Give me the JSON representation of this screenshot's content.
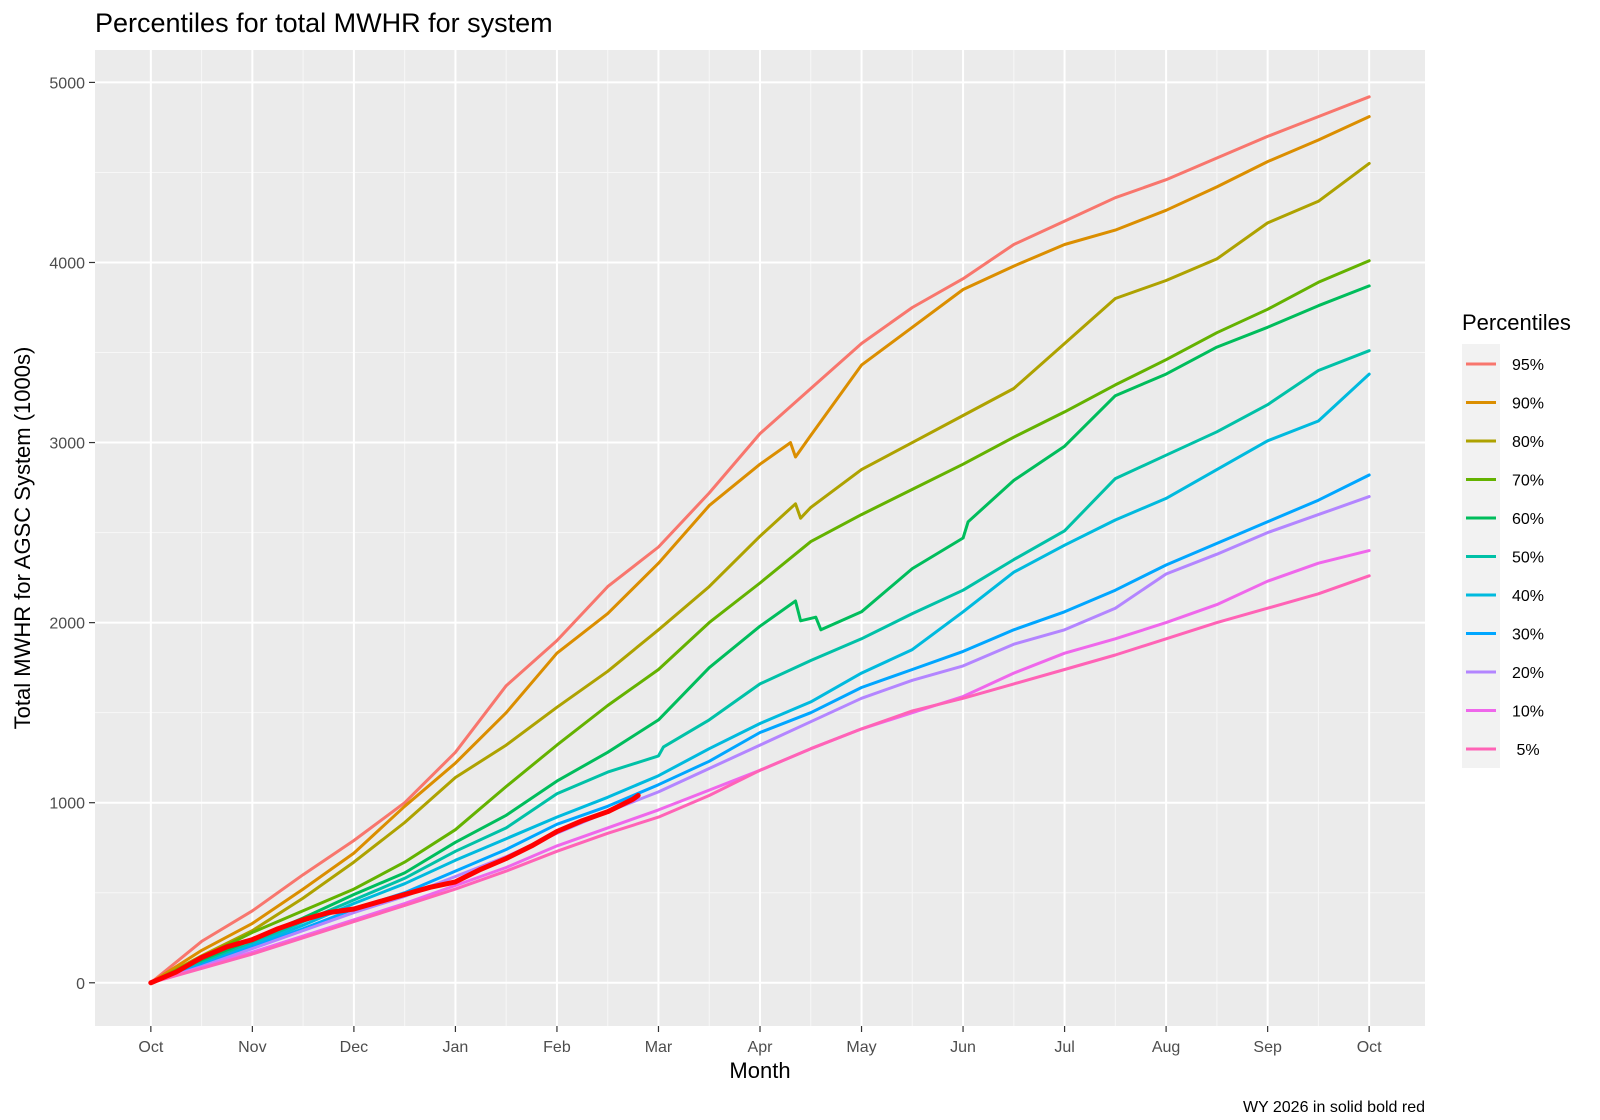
{
  "chart_data": {
    "type": "line",
    "title": "Percentiles for total MWHR for system",
    "xlabel": "Month",
    "ylabel": "Total MWHR for AGSC System (1000s)",
    "caption": "WY 2026 in solid  bold red",
    "legend_title": "Percentiles",
    "legend_position": "right",
    "grid": true,
    "x_ticks": [
      "Oct",
      "Nov",
      "Dec",
      "Jan",
      "Feb",
      "Mar",
      "Apr",
      "May",
      "Jun",
      "Jul",
      "Aug",
      "Sep",
      "Oct"
    ],
    "x_tick_months": [
      0,
      1,
      2,
      3,
      4,
      5,
      6,
      7,
      8,
      9,
      10,
      11,
      12
    ],
    "y_ticks": [
      0,
      1000,
      2000,
      3000,
      4000,
      5000
    ],
    "y_tick_labels": [
      "0",
      "1000",
      "2000",
      "3000",
      "4000",
      "5000"
    ],
    "xlim": [
      -0.55,
      12.55
    ],
    "ylim": [
      -240,
      5180
    ],
    "series": [
      {
        "name": "95%",
        "color": "#F8766D",
        "x": [
          0,
          0.5,
          1,
          1.5,
          2,
          2.5,
          3,
          3.5,
          4,
          4.5,
          5,
          5.5,
          6,
          6.5,
          7,
          7.5,
          8,
          8.5,
          9,
          9.5,
          10,
          10.5,
          11,
          11.5,
          12
        ],
        "y": [
          0,
          230,
          400,
          600,
          790,
          1000,
          1280,
          1650,
          1900,
          2200,
          2420,
          2720,
          3050,
          3300,
          3550,
          3750,
          3910,
          4100,
          4230,
          4360,
          4460,
          4580,
          4700,
          4810,
          4920
        ]
      },
      {
        "name": "90%",
        "color": "#DB8E00",
        "x": [
          0,
          0.5,
          1,
          1.5,
          2,
          2.5,
          3,
          3.5,
          4,
          4.5,
          5,
          5.5,
          6,
          6.3,
          6.35,
          6.5,
          7,
          7.5,
          8,
          8.5,
          9,
          9.5,
          10,
          10.5,
          11,
          11.5,
          12
        ],
        "y": [
          0,
          180,
          330,
          520,
          720,
          980,
          1220,
          1500,
          1830,
          2050,
          2330,
          2650,
          2880,
          3000,
          2920,
          3040,
          3430,
          3640,
          3850,
          3980,
          4100,
          4180,
          4290,
          4420,
          4560,
          4680,
          4810
        ]
      },
      {
        "name": "80%",
        "color": "#AEA200",
        "x": [
          0,
          0.5,
          1,
          1.5,
          2,
          2.5,
          3,
          3.5,
          4,
          4.5,
          5,
          5.5,
          6,
          6.35,
          6.4,
          6.5,
          7,
          7.5,
          8,
          8.5,
          9,
          9.5,
          10,
          10.5,
          11,
          11.5,
          12
        ],
        "y": [
          0,
          150,
          290,
          470,
          670,
          890,
          1140,
          1320,
          1530,
          1730,
          1960,
          2200,
          2480,
          2660,
          2580,
          2640,
          2850,
          3000,
          3150,
          3300,
          3550,
          3800,
          3900,
          4020,
          4220,
          4340,
          4550
        ]
      },
      {
        "name": "70%",
        "color": "#64B200",
        "x": [
          0,
          0.5,
          1,
          1.5,
          2,
          2.5,
          3,
          3.5,
          4,
          4.5,
          5,
          5.5,
          6,
          6.5,
          7,
          7.5,
          8,
          8.5,
          9,
          9.5,
          10,
          10.5,
          11,
          11.5,
          12
        ],
        "y": [
          0,
          140,
          280,
          400,
          520,
          670,
          850,
          1090,
          1320,
          1540,
          1740,
          2000,
          2220,
          2450,
          2600,
          2740,
          2880,
          3030,
          3170,
          3320,
          3460,
          3610,
          3740,
          3890,
          4010
        ]
      },
      {
        "name": "60%",
        "color": "#00BD5C",
        "x": [
          0,
          0.5,
          1,
          1.5,
          2,
          2.5,
          3,
          3.5,
          4,
          4.5,
          5,
          5.5,
          6,
          6.35,
          6.4,
          6.55,
          6.6,
          7,
          7.5,
          8,
          8.05,
          8.5,
          9,
          9.5,
          10,
          10.5,
          11,
          11.5,
          12
        ],
        "y": [
          0,
          120,
          240,
          360,
          490,
          610,
          780,
          930,
          1120,
          1280,
          1460,
          1750,
          1980,
          2120,
          2010,
          2030,
          1960,
          2060,
          2300,
          2470,
          2560,
          2790,
          2980,
          3260,
          3380,
          3530,
          3640,
          3760,
          3870
        ]
      },
      {
        "name": "50%",
        "color": "#00C1A7",
        "x": [
          0,
          0.5,
          1,
          1.5,
          2,
          2.5,
          3,
          3.5,
          4,
          4.5,
          5,
          5.05,
          5.5,
          6,
          6.5,
          7,
          7.5,
          8,
          8.5,
          9,
          9.5,
          10,
          10.5,
          11,
          11.5,
          12
        ],
        "y": [
          0,
          110,
          220,
          340,
          460,
          580,
          730,
          860,
          1050,
          1170,
          1260,
          1310,
          1460,
          1660,
          1790,
          1910,
          2050,
          2180,
          2350,
          2510,
          2800,
          2930,
          3060,
          3210,
          3400,
          3510
        ]
      },
      {
        "name": "40%",
        "color": "#00BADE",
        "x": [
          0,
          0.5,
          1,
          1.5,
          2,
          2.5,
          3,
          3.5,
          4,
          4.5,
          5,
          5.5,
          6,
          6.5,
          7,
          7.5,
          8,
          8.5,
          9,
          9.5,
          10,
          10.5,
          11,
          11.5,
          12
        ],
        "y": [
          0,
          100,
          210,
          320,
          440,
          550,
          680,
          800,
          920,
          1030,
          1150,
          1300,
          1440,
          1560,
          1720,
          1850,
          2060,
          2280,
          2430,
          2570,
          2690,
          2850,
          3010,
          3120,
          3380
        ]
      },
      {
        "name": "30%",
        "color": "#00A6FF",
        "x": [
          0,
          0.5,
          1,
          1.5,
          2,
          2.5,
          3,
          3.5,
          4,
          4.5,
          5,
          5.5,
          6,
          6.5,
          7,
          7.5,
          8,
          8.5,
          9,
          9.5,
          10,
          10.5,
          11,
          11.5,
          12
        ],
        "y": [
          0,
          100,
          200,
          300,
          410,
          500,
          620,
          740,
          880,
          980,
          1100,
          1230,
          1390,
          1500,
          1640,
          1740,
          1840,
          1960,
          2060,
          2180,
          2320,
          2440,
          2560,
          2680,
          2820
        ]
      },
      {
        "name": "20%",
        "color": "#B385FF",
        "x": [
          0,
          0.5,
          1,
          1.5,
          2,
          2.5,
          3,
          3.5,
          4,
          4.5,
          5,
          5.5,
          6,
          6.5,
          7,
          7.5,
          8,
          8.5,
          9,
          9.5,
          10,
          10.5,
          11,
          11.5,
          12
        ],
        "y": [
          0,
          90,
          190,
          290,
          390,
          480,
          590,
          700,
          830,
          950,
          1060,
          1190,
          1320,
          1450,
          1580,
          1680,
          1760,
          1880,
          1960,
          2080,
          2270,
          2380,
          2500,
          2600,
          2700
        ]
      },
      {
        "name": "10%",
        "color": "#EF67EB",
        "x": [
          0,
          0.5,
          1,
          1.5,
          2,
          2.5,
          3,
          3.5,
          4,
          4.5,
          5,
          5.5,
          6,
          6.5,
          7,
          7.5,
          8,
          8.5,
          9,
          9.5,
          10,
          10.5,
          11,
          11.5,
          12
        ],
        "y": [
          0,
          85,
          170,
          260,
          350,
          440,
          540,
          640,
          760,
          860,
          960,
          1070,
          1180,
          1300,
          1410,
          1500,
          1590,
          1720,
          1830,
          1910,
          2000,
          2100,
          2230,
          2330,
          2400
        ]
      },
      {
        "name": " 5%",
        "color": "#FF63B6",
        "x": [
          0,
          0.5,
          1,
          1.5,
          2,
          2.5,
          3,
          3.5,
          4,
          4.5,
          5,
          5.5,
          6,
          6.5,
          7,
          7.5,
          8,
          8.5,
          9,
          9.5,
          10,
          10.5,
          11,
          11.5,
          12
        ],
        "y": [
          0,
          80,
          160,
          250,
          340,
          430,
          520,
          620,
          730,
          830,
          920,
          1040,
          1180,
          1300,
          1410,
          1510,
          1580,
          1660,
          1740,
          1820,
          1910,
          2000,
          2080,
          2160,
          2260
        ]
      },
      {
        "color": "#FF0000",
        "bold": true,
        "x": [
          0,
          0.25,
          0.5,
          0.75,
          1,
          1.25,
          1.5,
          1.75,
          2,
          2.25,
          2.5,
          2.75,
          3,
          3.25,
          3.5,
          3.75,
          4,
          4.25,
          4.5,
          4.75,
          4.8
        ],
        "y": [
          0,
          60,
          140,
          200,
          240,
          300,
          350,
          390,
          410,
          450,
          490,
          530,
          560,
          630,
          690,
          760,
          840,
          900,
          950,
          1020,
          1040
        ]
      }
    ]
  }
}
